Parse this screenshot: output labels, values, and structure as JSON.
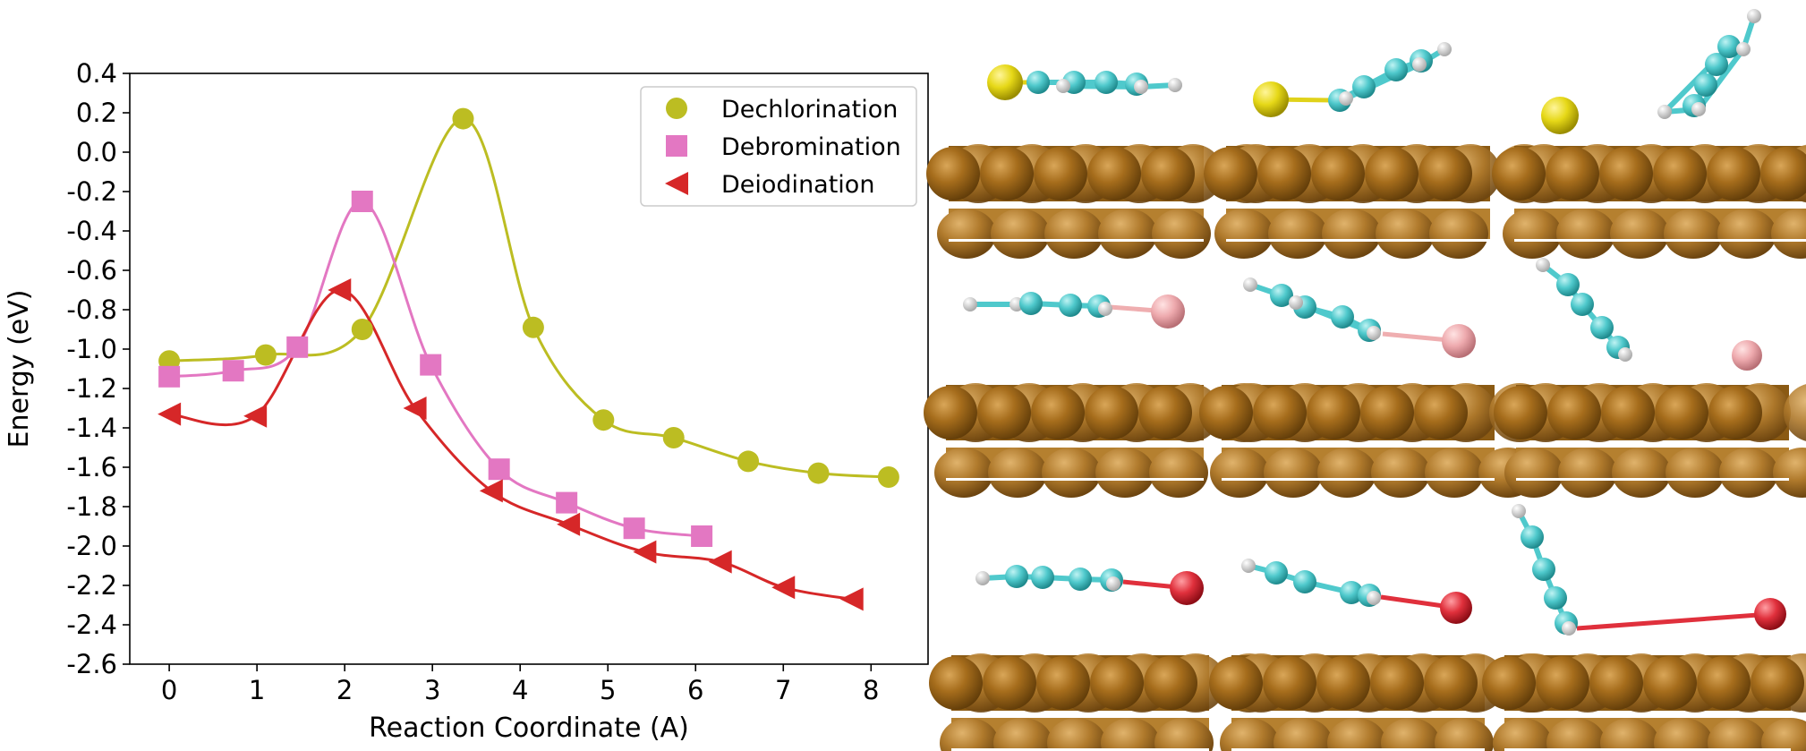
{
  "chart_data": {
    "type": "line",
    "xlabel": "Reaction Coordinate (A)",
    "ylabel": "Energy (eV)",
    "xlim": [
      -0.45,
      8.65
    ],
    "ylim": [
      -2.6,
      0.4
    ],
    "xticks": [
      "0",
      "1",
      "2",
      "3",
      "4",
      "5",
      "6",
      "7",
      "8"
    ],
    "yticks": [
      "0.4",
      "0.2",
      "0.0",
      "-0.2",
      "-0.4",
      "-0.6",
      "-0.8",
      "-1.0",
      "-1.2",
      "-1.4",
      "-1.6",
      "-1.8",
      "-2.0",
      "-2.2",
      "-2.4",
      "-2.6"
    ],
    "legend_position": "top-right",
    "series": [
      {
        "name": "Dechlorination",
        "color": "#bcbd22",
        "marker": "circle",
        "x": [
          0,
          1.1,
          2.2,
          3.35,
          4.15,
          4.95,
          5.75,
          6.6,
          7.4,
          8.2
        ],
        "y": [
          -1.06,
          -1.03,
          -0.9,
          0.17,
          -0.89,
          -1.36,
          -1.45,
          -1.57,
          -1.63,
          -1.65
        ]
      },
      {
        "name": "Debromination",
        "color": "#e377c2",
        "marker": "square",
        "x": [
          0,
          0.73,
          1.46,
          2.2,
          2.98,
          3.76,
          4.53,
          5.3,
          6.07
        ],
        "y": [
          -1.14,
          -1.11,
          -0.99,
          -0.25,
          -1.08,
          -1.61,
          -1.78,
          -1.91,
          -1.95
        ]
      },
      {
        "name": "Deiodination",
        "color": "#d62728",
        "marker": "triangle-left",
        "x": [
          0,
          0.98,
          1.94,
          2.8,
          3.67,
          4.55,
          5.42,
          6.28,
          7.0,
          7.78
        ],
        "y": [
          -1.33,
          -1.34,
          -0.7,
          -1.3,
          -1.72,
          -1.89,
          -2.03,
          -2.08,
          -2.21,
          -2.27
        ]
      }
    ]
  },
  "colors": {
    "surface_dark": "#7a4e0e",
    "surface_mid": "#a76f1e",
    "surface_light": "#c99443",
    "carbon": "#4fc9cc",
    "hydrogen": "#eeeeee",
    "chlorine": "#e0d21a",
    "bromine": "#efaeb0",
    "iodine": "#e0303c"
  },
  "icons": {
    "panels": "molecule-on-metal-surface snapshots (3x3)"
  }
}
